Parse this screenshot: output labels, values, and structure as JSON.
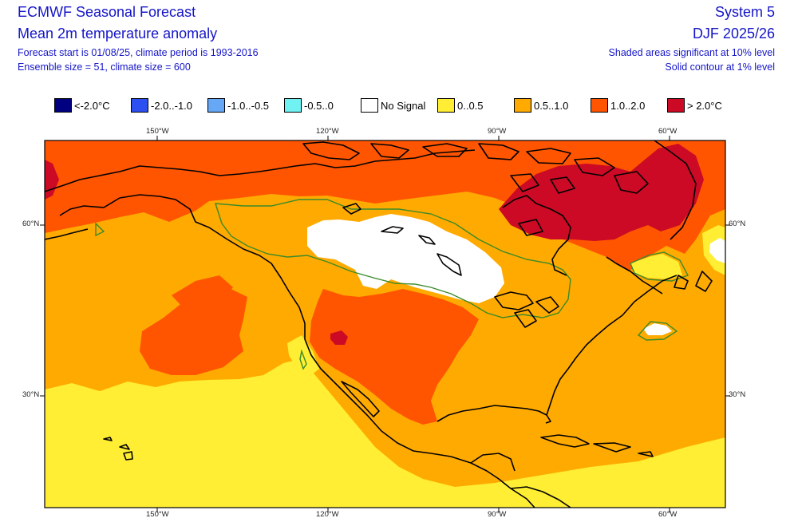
{
  "header": {
    "title": "ECMWF Seasonal Forecast",
    "subtitle": "Mean 2m temperature anomaly",
    "line3": "Forecast start is 01/08/25, climate period is 1993-2016",
    "line4": "Ensemble size = 51, climate size = 600",
    "system": "System 5",
    "season": "DJF 2025/26",
    "note1": "Shaded areas significant at 10% level",
    "note2": "Solid contour at 1% level"
  },
  "legend": [
    {
      "label": "<-2.0°C",
      "color": "#000080"
    },
    {
      "label": "-2.0..-1.0",
      "color": "#2c4ff2"
    },
    {
      "label": "-1.0..-0.5",
      "color": "#66a8f5"
    },
    {
      "label": "-0.5..0",
      "color": "#70f2f2"
    },
    {
      "label": "No Signal",
      "color": "#ffffff"
    },
    {
      "label": "0..0.5",
      "color": "#ffee33"
    },
    {
      "label": "0.5..1.0",
      "color": "#ffaa00"
    },
    {
      "label": "1.0..2.0",
      "color": "#ff5500"
    },
    {
      "label": "> 2.0°C",
      "color": "#cc0a25"
    }
  ],
  "axes": {
    "lon_labels": [
      "150°W",
      "120°W",
      "90°W",
      "60°W"
    ],
    "lat_labels": [
      "60°N",
      "30°N"
    ]
  }
}
